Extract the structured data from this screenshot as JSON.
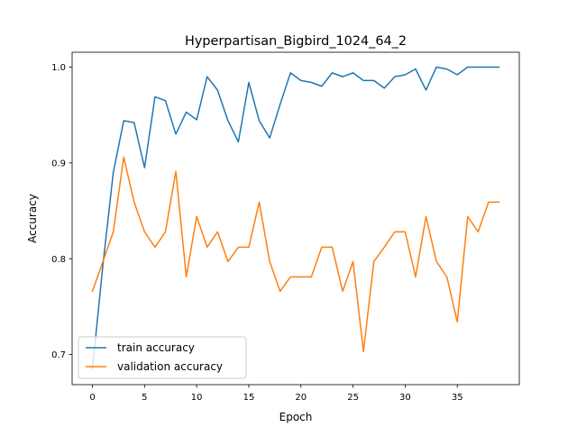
{
  "chart_data": {
    "type": "line",
    "title": "Hyperpartisan_Bigbird_1024_64_2",
    "xlabel": "Epoch",
    "ylabel": "Accuracy",
    "xlim": [
      -1.95,
      40.95
    ],
    "ylim": [
      0.6685,
      1.0155
    ],
    "xticks": [
      0,
      5,
      10,
      15,
      20,
      25,
      30,
      35
    ],
    "yticks": [
      0.7,
      0.8,
      0.9,
      1.0
    ],
    "ytick_labels": [
      "0.7",
      "0.8",
      "0.9",
      "1.0"
    ],
    "grid": false,
    "legend": "lower-left",
    "x": [
      0,
      1,
      2,
      3,
      4,
      5,
      6,
      7,
      8,
      9,
      10,
      11,
      12,
      13,
      14,
      15,
      16,
      17,
      18,
      19,
      20,
      21,
      22,
      23,
      24,
      25,
      26,
      27,
      28,
      29,
      30,
      31,
      32,
      33,
      34,
      35,
      36,
      37,
      38,
      39
    ],
    "series": [
      {
        "name": "train accuracy",
        "color": "#1f77b4",
        "values": [
          0.685,
          0.793,
          0.89,
          0.944,
          0.942,
          0.895,
          0.969,
          0.965,
          0.93,
          0.953,
          0.945,
          0.99,
          0.976,
          0.944,
          0.922,
          0.984,
          0.944,
          0.926,
          0.961,
          0.994,
          0.986,
          0.984,
          0.98,
          0.994,
          0.99,
          0.994,
          0.986,
          0.986,
          0.978,
          0.99,
          0.992,
          0.998,
          0.976,
          1.0,
          0.998,
          0.992,
          1.0,
          1.0,
          1.0,
          1.0
        ]
      },
      {
        "name": "validation accuracy",
        "color": "#ff7f0e",
        "values": [
          0.766,
          0.797,
          0.828,
          0.906,
          0.859,
          0.828,
          0.812,
          0.828,
          0.891,
          0.781,
          0.844,
          0.812,
          0.828,
          0.797,
          0.812,
          0.812,
          0.859,
          0.797,
          0.766,
          0.781,
          0.781,
          0.781,
          0.812,
          0.812,
          0.766,
          0.797,
          0.703,
          0.797,
          0.812,
          0.828,
          0.828,
          0.781,
          0.844,
          0.797,
          0.781,
          0.734,
          0.844,
          0.828,
          0.859,
          0.859
        ]
      }
    ]
  }
}
